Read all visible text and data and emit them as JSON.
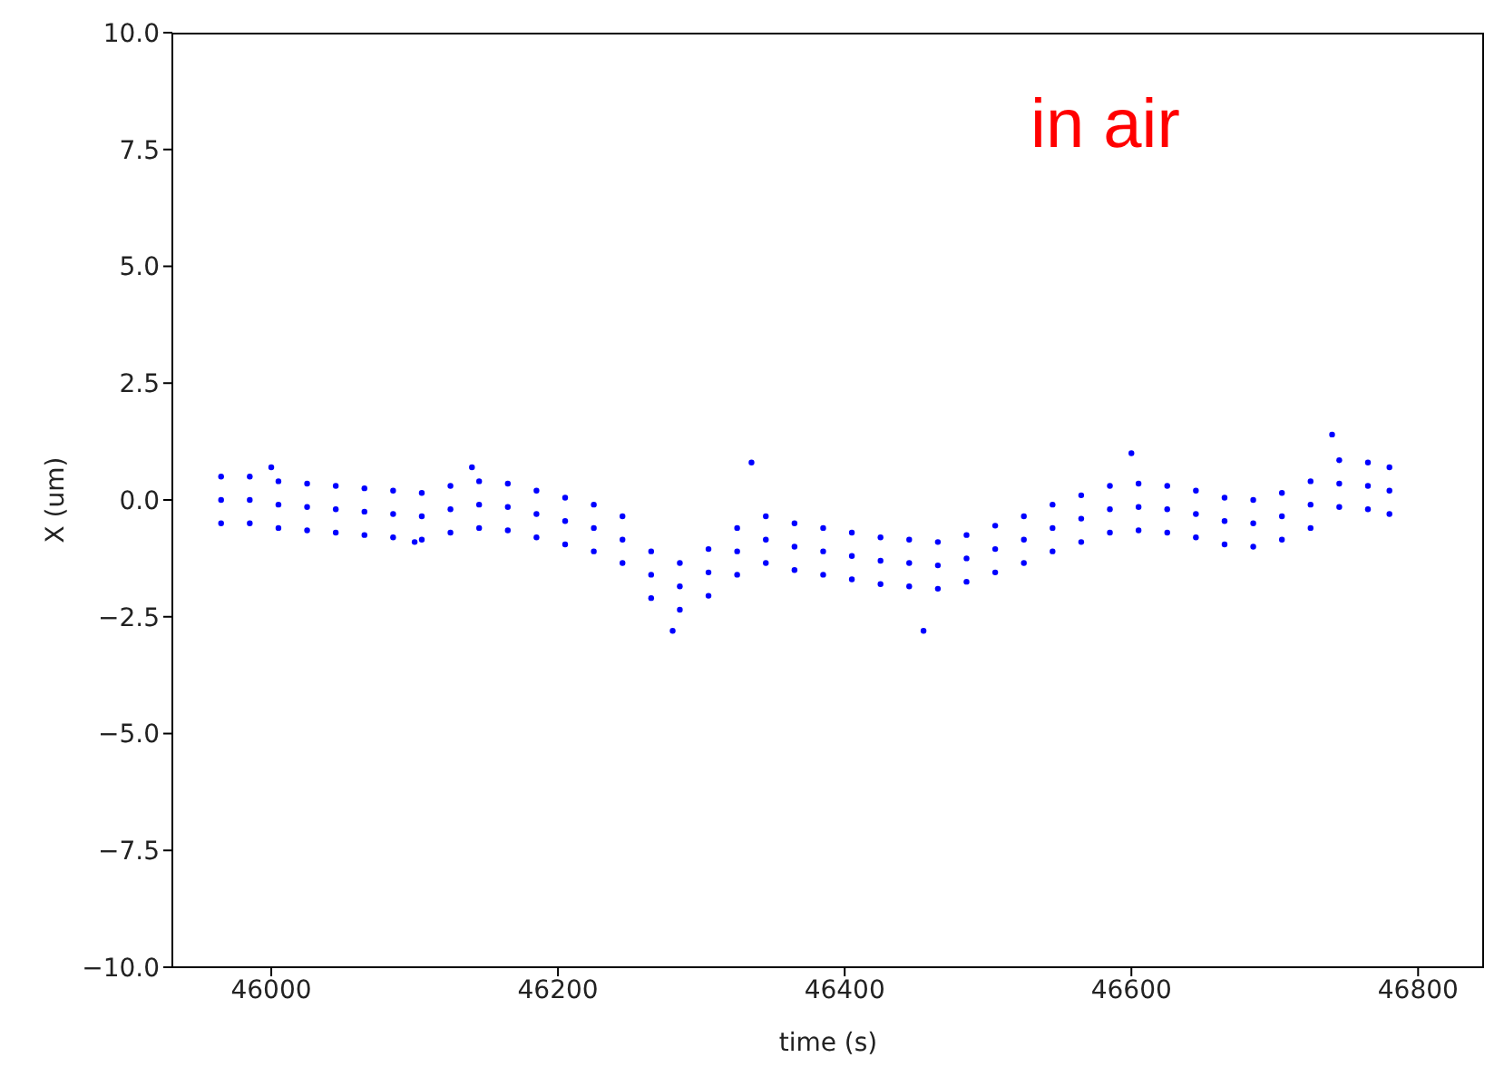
{
  "chart_data": {
    "type": "scatter",
    "xlabel": "time (s)",
    "ylabel": "X (um)",
    "annotations": [
      "in air"
    ],
    "xlim": [
      45931,
      46846
    ],
    "xticks": [
      46000,
      46200,
      46400,
      46600,
      46800
    ],
    "ylim": [
      -10,
      10
    ],
    "yticks": [
      {
        "value": -10,
        "label": "−10.0"
      },
      {
        "value": -7.5,
        "label": "−7.5"
      },
      {
        "value": -5,
        "label": "−5.0"
      },
      {
        "value": -2.5,
        "label": "−2.5"
      },
      {
        "value": 0,
        "label": "0.0"
      },
      {
        "value": 2.5,
        "label": "2.5"
      },
      {
        "value": 5,
        "label": "5.0"
      },
      {
        "value": 7.5,
        "label": "7.5"
      },
      {
        "value": 10,
        "label": "10.0"
      }
    ],
    "grid": false,
    "legend": false,
    "marker": "circle",
    "series": [
      {
        "color": "#0000ff",
        "x": [
          45965,
          45965,
          45965,
          45985,
          45985,
          45985,
          46005,
          46005,
          46005,
          46025,
          46025,
          46025,
          46045,
          46045,
          46045,
          46065,
          46065,
          46065,
          46085,
          46085,
          46085,
          46105,
          46105,
          46105,
          46125,
          46125,
          46125,
          46145,
          46145,
          46145,
          46165,
          46165,
          46165,
          46185,
          46185,
          46185,
          46205,
          46205,
          46205,
          46225,
          46225,
          46225,
          46245,
          46245,
          46245,
          46265,
          46265,
          46265,
          46285,
          46285,
          46285,
          46305,
          46305,
          46305,
          46325,
          46325,
          46325,
          46345,
          46345,
          46345,
          46365,
          46365,
          46365,
          46385,
          46385,
          46385,
          46405,
          46405,
          46405,
          46425,
          46425,
          46425,
          46445,
          46445,
          46445,
          46465,
          46465,
          46465,
          46485,
          46485,
          46485,
          46505,
          46505,
          46505,
          46525,
          46525,
          46525,
          46545,
          46545,
          46545,
          46565,
          46565,
          46565,
          46585,
          46585,
          46585,
          46605,
          46605,
          46605,
          46625,
          46625,
          46625,
          46645,
          46645,
          46645,
          46665,
          46665,
          46665,
          46685,
          46685,
          46685,
          46705,
          46705,
          46705,
          46725,
          46725,
          46725,
          46745,
          46745,
          46745,
          46765,
          46765,
          46765,
          46780,
          46780,
          46780,
          46335,
          46280,
          46455,
          46600,
          46740,
          46140,
          46000,
          46100
        ],
        "values": [
          -0.5,
          0,
          0.5,
          -0.5,
          0,
          0.5,
          -0.6,
          -0.1,
          0.4,
          -0.65,
          -0.15,
          0.35,
          -0.7,
          -0.2,
          0.3,
          -0.75,
          -0.25,
          0.25,
          -0.8,
          -0.3,
          0.2,
          -0.85,
          -0.35,
          0.15,
          -0.7,
          -0.2,
          0.3,
          -0.6,
          -0.1,
          0.4,
          -0.65,
          -0.15,
          0.35,
          -0.8,
          -0.3,
          0.2,
          -0.95,
          -0.45,
          0.05,
          -1.1,
          -0.6,
          -0.1,
          -1.35,
          -0.85,
          -0.35,
          -2.1,
          -1.6,
          -1.1,
          -2.35,
          -1.85,
          -1.35,
          -2.05,
          -1.55,
          -1.05,
          -1.6,
          -1.1,
          -0.6,
          -1.35,
          -0.85,
          -0.35,
          -1.5,
          -1.0,
          -0.5,
          -1.6,
          -1.1,
          -0.6,
          -1.7,
          -1.2,
          -0.7,
          -1.8,
          -1.3,
          -0.8,
          -1.85,
          -1.35,
          -0.85,
          -1.9,
          -1.4,
          -0.9,
          -1.75,
          -1.25,
          -0.75,
          -1.55,
          -1.05,
          -0.55,
          -1.35,
          -0.85,
          -0.35,
          -1.1,
          -0.6,
          -0.1,
          -0.9,
          -0.4,
          0.1,
          -0.7,
          -0.2,
          0.3,
          -0.65,
          -0.15,
          0.35,
          -0.7,
          -0.2,
          0.3,
          -0.8,
          -0.3,
          0.2,
          -0.95,
          -0.45,
          0.05,
          -1.0,
          -0.5,
          0.0,
          -0.85,
          -0.35,
          0.15,
          -0.6,
          -0.1,
          0.4,
          -0.15,
          0.35,
          0.85,
          -0.2,
          0.3,
          0.8,
          -0.3,
          0.2,
          0.7,
          0.8,
          -2.8,
          -2.8,
          1.0,
          1.4,
          0.7,
          0.7,
          -0.9
        ]
      }
    ]
  }
}
